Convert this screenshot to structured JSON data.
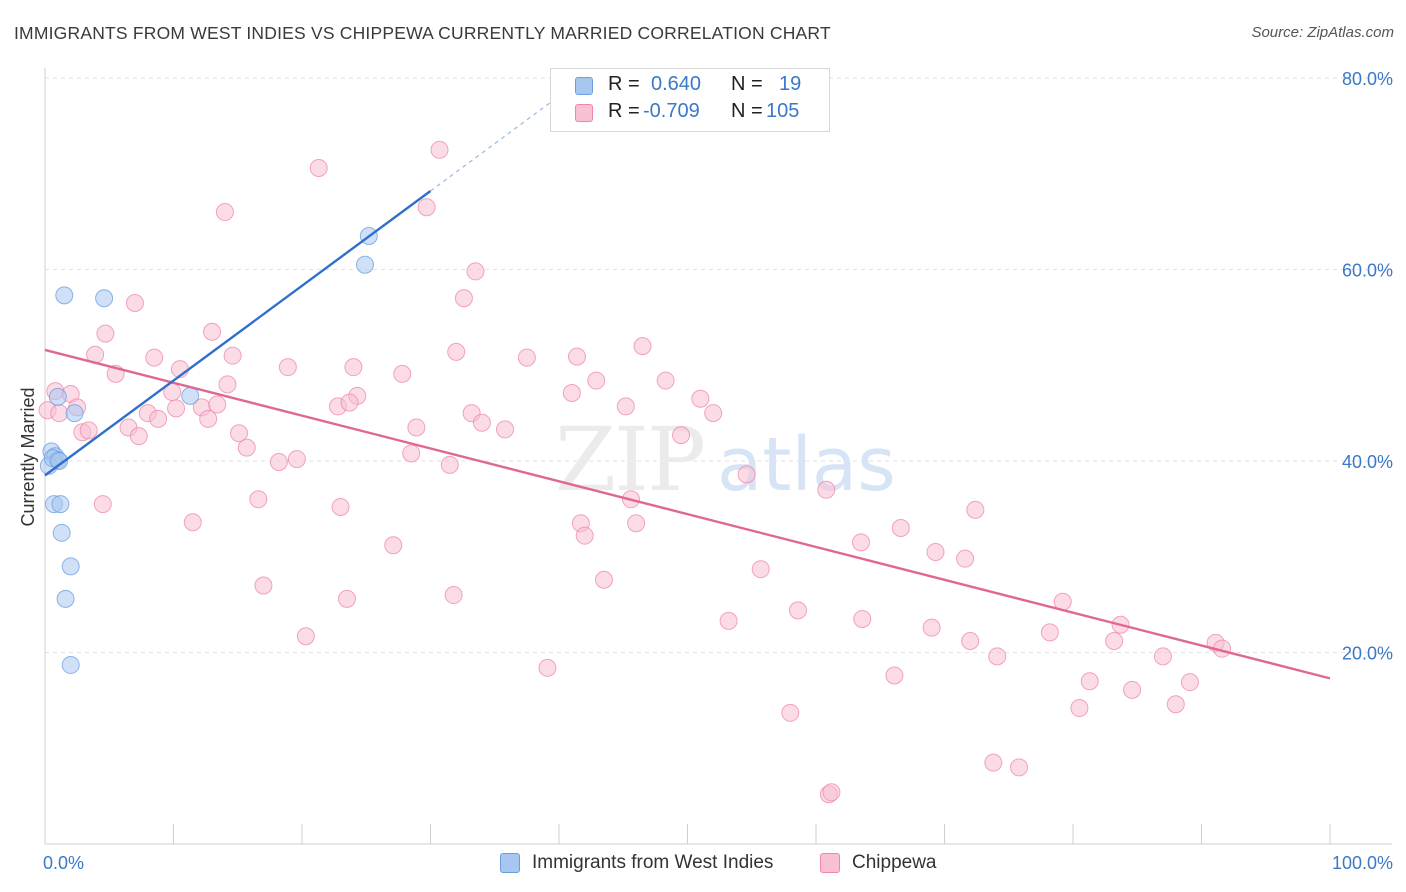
{
  "chart_data": {
    "type": "scatter",
    "title": "IMMIGRANTS FROM WEST INDIES VS CHIPPEWA CURRENTLY MARRIED CORRELATION CHART",
    "source": "Source: ZipAtlas.com",
    "xlabel": "",
    "ylabel": "Currently Married",
    "xlim": [
      0,
      100
    ],
    "ylim": [
      0,
      80
    ],
    "x_tick_labels": [
      "0.0%",
      "100.0%"
    ],
    "y_ticks": [
      {
        "value": 20,
        "label": "20.0%"
      },
      {
        "value": 40,
        "label": "40.0%"
      },
      {
        "value": 60,
        "label": "60.0%"
      },
      {
        "value": 80,
        "label": "80.0%"
      }
    ],
    "grid": true,
    "watermark": "ZIPatlas",
    "stats": [
      {
        "r_label": "R =",
        "r": "0.640",
        "n_label": "N =",
        "n": "19",
        "color": "#a8c7f0",
        "border": "#6a9ee0"
      },
      {
        "r_label": "R =",
        "r": "-0.709",
        "n_label": "N =",
        "n": "105",
        "color": "#f8c0d2",
        "border": "#ee88a8"
      }
    ],
    "series": [
      {
        "name": "Immigrants from West Indies",
        "color": "#a8c7f0",
        "stroke": "#6a9ee0",
        "trend": {
          "x0": 0.0,
          "y0": 38.5,
          "x1": 30.0,
          "y1": 68.2,
          "dash_to_x": 42.0,
          "color": "#2f6fce"
        },
        "points": [
          [
            1.5,
            57.3
          ],
          [
            4.6,
            57.0
          ],
          [
            0.5,
            41.0
          ],
          [
            0.8,
            40.5
          ],
          [
            1.0,
            40.1
          ],
          [
            0.3,
            39.5
          ],
          [
            0.7,
            35.5
          ],
          [
            1.2,
            35.5
          ],
          [
            1.3,
            32.5
          ],
          [
            2.0,
            29.0
          ],
          [
            1.6,
            25.6
          ],
          [
            2.0,
            18.7
          ],
          [
            1.0,
            46.7
          ],
          [
            2.3,
            45.0
          ],
          [
            11.3,
            46.8
          ],
          [
            25.2,
            63.5
          ],
          [
            24.9,
            60.5
          ],
          [
            0.6,
            40.3
          ],
          [
            1.1,
            40.0
          ]
        ]
      },
      {
        "name": "Chippewa",
        "color": "#f8c0d2",
        "stroke": "#ee88a8",
        "trend": {
          "x0": 0.0,
          "y0": 51.6,
          "x1": 100.0,
          "y1": 17.3,
          "color": "#e06890"
        },
        "points": [
          [
            0.2,
            45.3
          ],
          [
            0.8,
            47.3
          ],
          [
            2.0,
            47.0
          ],
          [
            2.5,
            45.6
          ],
          [
            1.1,
            45.0
          ],
          [
            2.9,
            43.0
          ],
          [
            3.4,
            43.2
          ],
          [
            3.9,
            51.1
          ],
          [
            4.7,
            53.3
          ],
          [
            4.5,
            35.5
          ],
          [
            5.5,
            49.1
          ],
          [
            6.5,
            43.5
          ],
          [
            7.0,
            56.5
          ],
          [
            7.3,
            42.6
          ],
          [
            8.0,
            45.0
          ],
          [
            8.5,
            50.8
          ],
          [
            8.8,
            44.4
          ],
          [
            9.9,
            47.2
          ],
          [
            10.2,
            45.5
          ],
          [
            10.5,
            49.6
          ],
          [
            11.5,
            33.6
          ],
          [
            12.2,
            45.6
          ],
          [
            12.7,
            44.4
          ],
          [
            13.0,
            53.5
          ],
          [
            13.4,
            45.9
          ],
          [
            14.0,
            66.0
          ],
          [
            14.2,
            48.0
          ],
          [
            14.6,
            51.0
          ],
          [
            15.1,
            42.9
          ],
          [
            15.7,
            41.4
          ],
          [
            16.6,
            36.0
          ],
          [
            17.0,
            27.0
          ],
          [
            18.2,
            39.9
          ],
          [
            18.9,
            49.8
          ],
          [
            19.6,
            40.2
          ],
          [
            20.3,
            21.7
          ],
          [
            21.3,
            70.6
          ],
          [
            22.8,
            45.7
          ],
          [
            23.0,
            35.2
          ],
          [
            23.5,
            25.6
          ],
          [
            24.0,
            49.8
          ],
          [
            24.3,
            46.8
          ],
          [
            27.1,
            31.2
          ],
          [
            27.8,
            49.1
          ],
          [
            28.5,
            40.8
          ],
          [
            28.9,
            43.5
          ],
          [
            29.7,
            66.5
          ],
          [
            30.7,
            72.5
          ],
          [
            31.5,
            39.6
          ],
          [
            31.8,
            26.0
          ],
          [
            32.0,
            51.4
          ],
          [
            32.6,
            57.0
          ],
          [
            33.2,
            45.0
          ],
          [
            34.0,
            44.0
          ],
          [
            35.8,
            43.3
          ],
          [
            37.5,
            50.8
          ],
          [
            39.1,
            18.4
          ],
          [
            41.0,
            47.1
          ],
          [
            41.4,
            50.9
          ],
          [
            41.7,
            33.5
          ],
          [
            42.0,
            32.2
          ],
          [
            42.9,
            48.4
          ],
          [
            43.5,
            27.6
          ],
          [
            45.2,
            45.7
          ],
          [
            45.6,
            36.0
          ],
          [
            46.0,
            33.5
          ],
          [
            46.5,
            52.0
          ],
          [
            48.3,
            48.4
          ],
          [
            49.5,
            42.7
          ],
          [
            51.0,
            46.5
          ],
          [
            52.0,
            45.0
          ],
          [
            54.6,
            38.6
          ],
          [
            55.7,
            28.7
          ],
          [
            58.0,
            13.7
          ],
          [
            58.6,
            24.4
          ],
          [
            60.8,
            37.0
          ],
          [
            61.0,
            5.2
          ],
          [
            61.2,
            5.4
          ],
          [
            63.5,
            31.5
          ],
          [
            63.6,
            23.5
          ],
          [
            66.1,
            17.6
          ],
          [
            66.6,
            33.0
          ],
          [
            69.0,
            22.6
          ],
          [
            69.3,
            30.5
          ],
          [
            71.6,
            29.8
          ],
          [
            72.0,
            21.2
          ],
          [
            72.4,
            34.9
          ],
          [
            73.8,
            8.5
          ],
          [
            74.1,
            19.6
          ],
          [
            75.8,
            8.0
          ],
          [
            78.2,
            22.1
          ],
          [
            79.2,
            25.3
          ],
          [
            80.5,
            14.2
          ],
          [
            81.3,
            17.0
          ],
          [
            83.2,
            21.2
          ],
          [
            83.7,
            22.9
          ],
          [
            84.6,
            16.1
          ],
          [
            87.0,
            19.6
          ],
          [
            88.0,
            14.6
          ],
          [
            89.1,
            16.9
          ],
          [
            91.1,
            21.0
          ],
          [
            91.6,
            20.4
          ],
          [
            23.7,
            46.1
          ],
          [
            33.5,
            59.8
          ],
          [
            53.2,
            23.3
          ]
        ]
      }
    ]
  }
}
